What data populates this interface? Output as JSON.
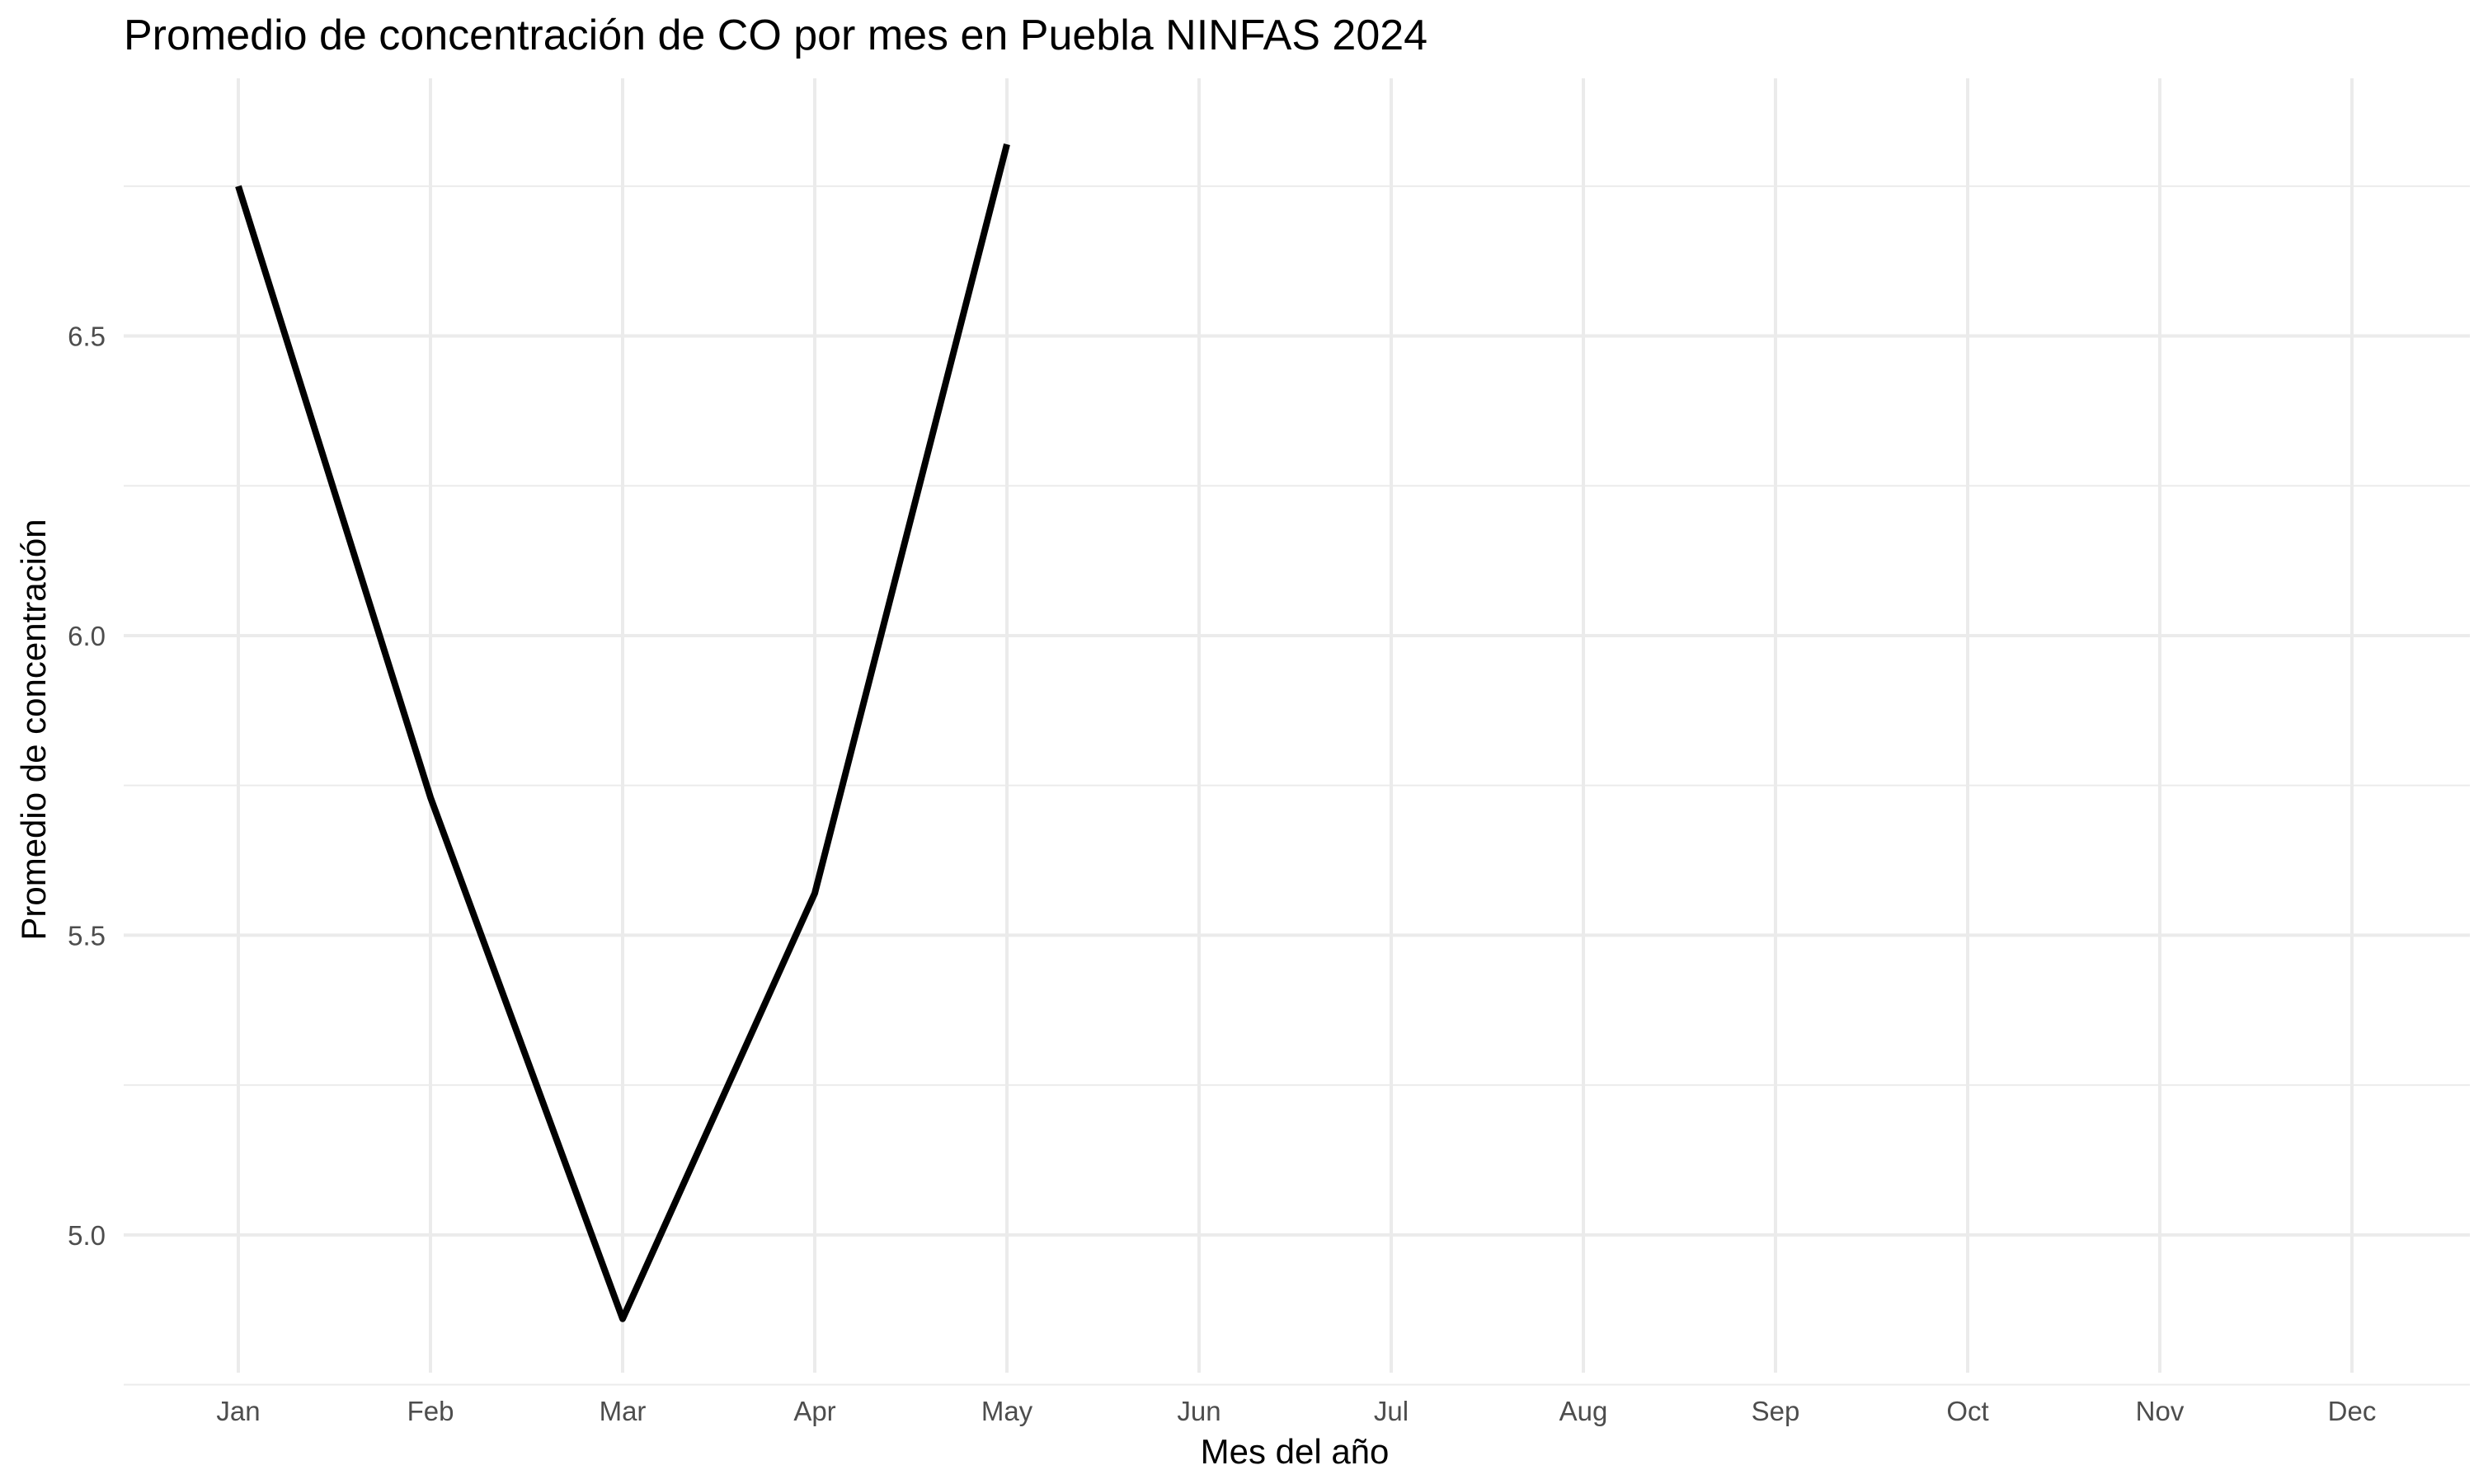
{
  "chart_data": {
    "type": "line",
    "title": "Promedio de concentración de CO por mes en Puebla NINFAS 2024",
    "xlabel": "Mes del año",
    "ylabel": "Promedio de concentración",
    "categories": [
      "Jan",
      "Feb",
      "Mar",
      "Apr",
      "May",
      "Jun",
      "Jul",
      "Aug",
      "Sep",
      "Oct",
      "Nov",
      "Dec"
    ],
    "series": [
      {
        "values": [
          6.75,
          5.73,
          4.86,
          5.57,
          6.82,
          null,
          null,
          null,
          null,
          null,
          null,
          null
        ],
        "color": "#000000"
      }
    ],
    "ylim": [
      4.77,
      6.93
    ],
    "yticks": [
      5.0,
      5.5,
      6.0,
      6.5
    ],
    "ytick_labels": [
      "5.0",
      "5.5",
      "6.0",
      "6.5"
    ],
    "y_minor_gridlines": [
      4.75,
      5.25,
      5.75,
      6.25,
      6.75
    ],
    "grid": true,
    "legend": "none",
    "background": "#ffffff"
  }
}
